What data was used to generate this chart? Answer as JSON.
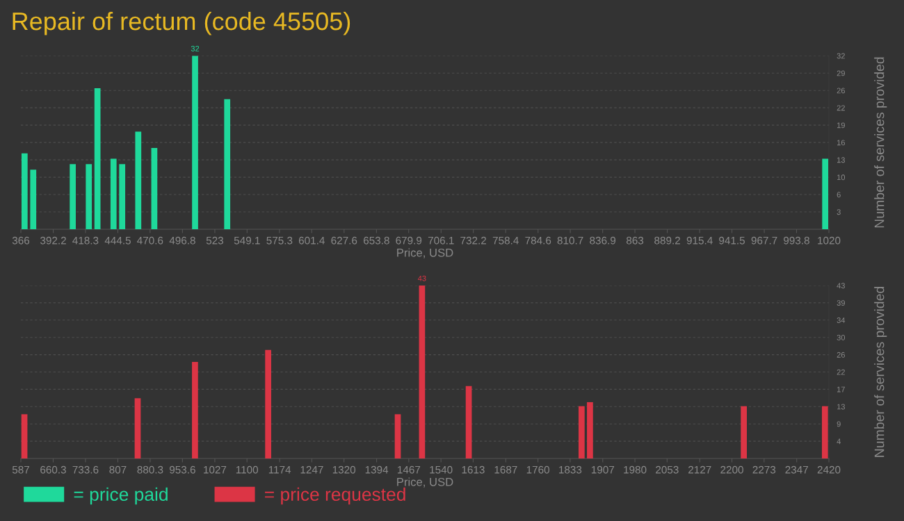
{
  "chart_data": [
    {
      "type": "bar",
      "title": "Repair of rectum (code 45505)",
      "xlabel": "Price, USD",
      "ylabel": "Number of services provided",
      "x": [
        369,
        376,
        408,
        421,
        428,
        441,
        448,
        461,
        474,
        507,
        533,
        1017
      ],
      "series": [
        {
          "name": "= price paid",
          "color": "#1fd99b",
          "values": [
            14,
            11,
            12,
            12,
            26,
            13,
            12,
            18,
            15,
            32,
            24,
            13
          ],
          "value_labels": [
            null,
            null,
            null,
            null,
            null,
            null,
            null,
            null,
            null,
            "32",
            null,
            null
          ]
        }
      ],
      "xlim": [
        366,
        1020
      ],
      "xticks": [
        366,
        392.2,
        418.3,
        444.5,
        470.6,
        496.8,
        523,
        549.1,
        575.3,
        601.4,
        627.6,
        653.8,
        679.9,
        706.1,
        732.2,
        758.4,
        784.6,
        810.7,
        836.9,
        863,
        889.2,
        915.4,
        941.5,
        967.7,
        993.8,
        1020
      ],
      "ylim": [
        0,
        32
      ],
      "yticks": [
        {
          "value": 3.2,
          "label": "3"
        },
        {
          "value": 6.4,
          "label": "6"
        },
        {
          "value": 9.6,
          "label": "10"
        },
        {
          "value": 12.8,
          "label": "13"
        },
        {
          "value": 16,
          "label": "16"
        },
        {
          "value": 19.2,
          "label": "19"
        },
        {
          "value": 22.4,
          "label": "22"
        },
        {
          "value": 25.6,
          "label": "26"
        },
        {
          "value": 28.8,
          "label": "29"
        },
        {
          "value": 32,
          "label": "32"
        }
      ],
      "grid": "y",
      "legend": "bottom left"
    },
    {
      "type": "bar",
      "xlabel": "Price, USD",
      "ylabel": "Number of services provided",
      "x": [
        595,
        852,
        982,
        1148,
        1442,
        1497,
        1603,
        1859,
        1878,
        2227,
        2411
      ],
      "series": [
        {
          "name": "= price requested",
          "color": "#dc3545",
          "values": [
            11,
            15,
            24,
            27,
            11,
            43,
            18,
            13,
            14,
            13,
            13
          ],
          "value_labels": [
            null,
            null,
            null,
            null,
            null,
            "43",
            null,
            null,
            null,
            null,
            null
          ]
        }
      ],
      "xlim": [
        587,
        2420
      ],
      "xticks": [
        587,
        660.3,
        733.6,
        807,
        880.3,
        953.6,
        1027,
        1100,
        1174,
        1247,
        1320,
        1394,
        1467,
        1540,
        1613,
        1687,
        1760,
        1833,
        1907,
        1980,
        2053,
        2127,
        2200,
        2273,
        2347,
        2420
      ],
      "ylim": [
        0,
        43
      ],
      "yticks": [
        {
          "value": 4.3,
          "label": "4"
        },
        {
          "value": 8.6,
          "label": "9"
        },
        {
          "value": 12.9,
          "label": "13"
        },
        {
          "value": 17.2,
          "label": "17"
        },
        {
          "value": 21.5,
          "label": "22"
        },
        {
          "value": 25.8,
          "label": "26"
        },
        {
          "value": 30.1,
          "label": "30"
        },
        {
          "value": 34.4,
          "label": "34"
        },
        {
          "value": 38.7,
          "label": "39"
        },
        {
          "value": 43,
          "label": "43"
        }
      ],
      "grid": "y",
      "legend": "bottom left"
    }
  ]
}
